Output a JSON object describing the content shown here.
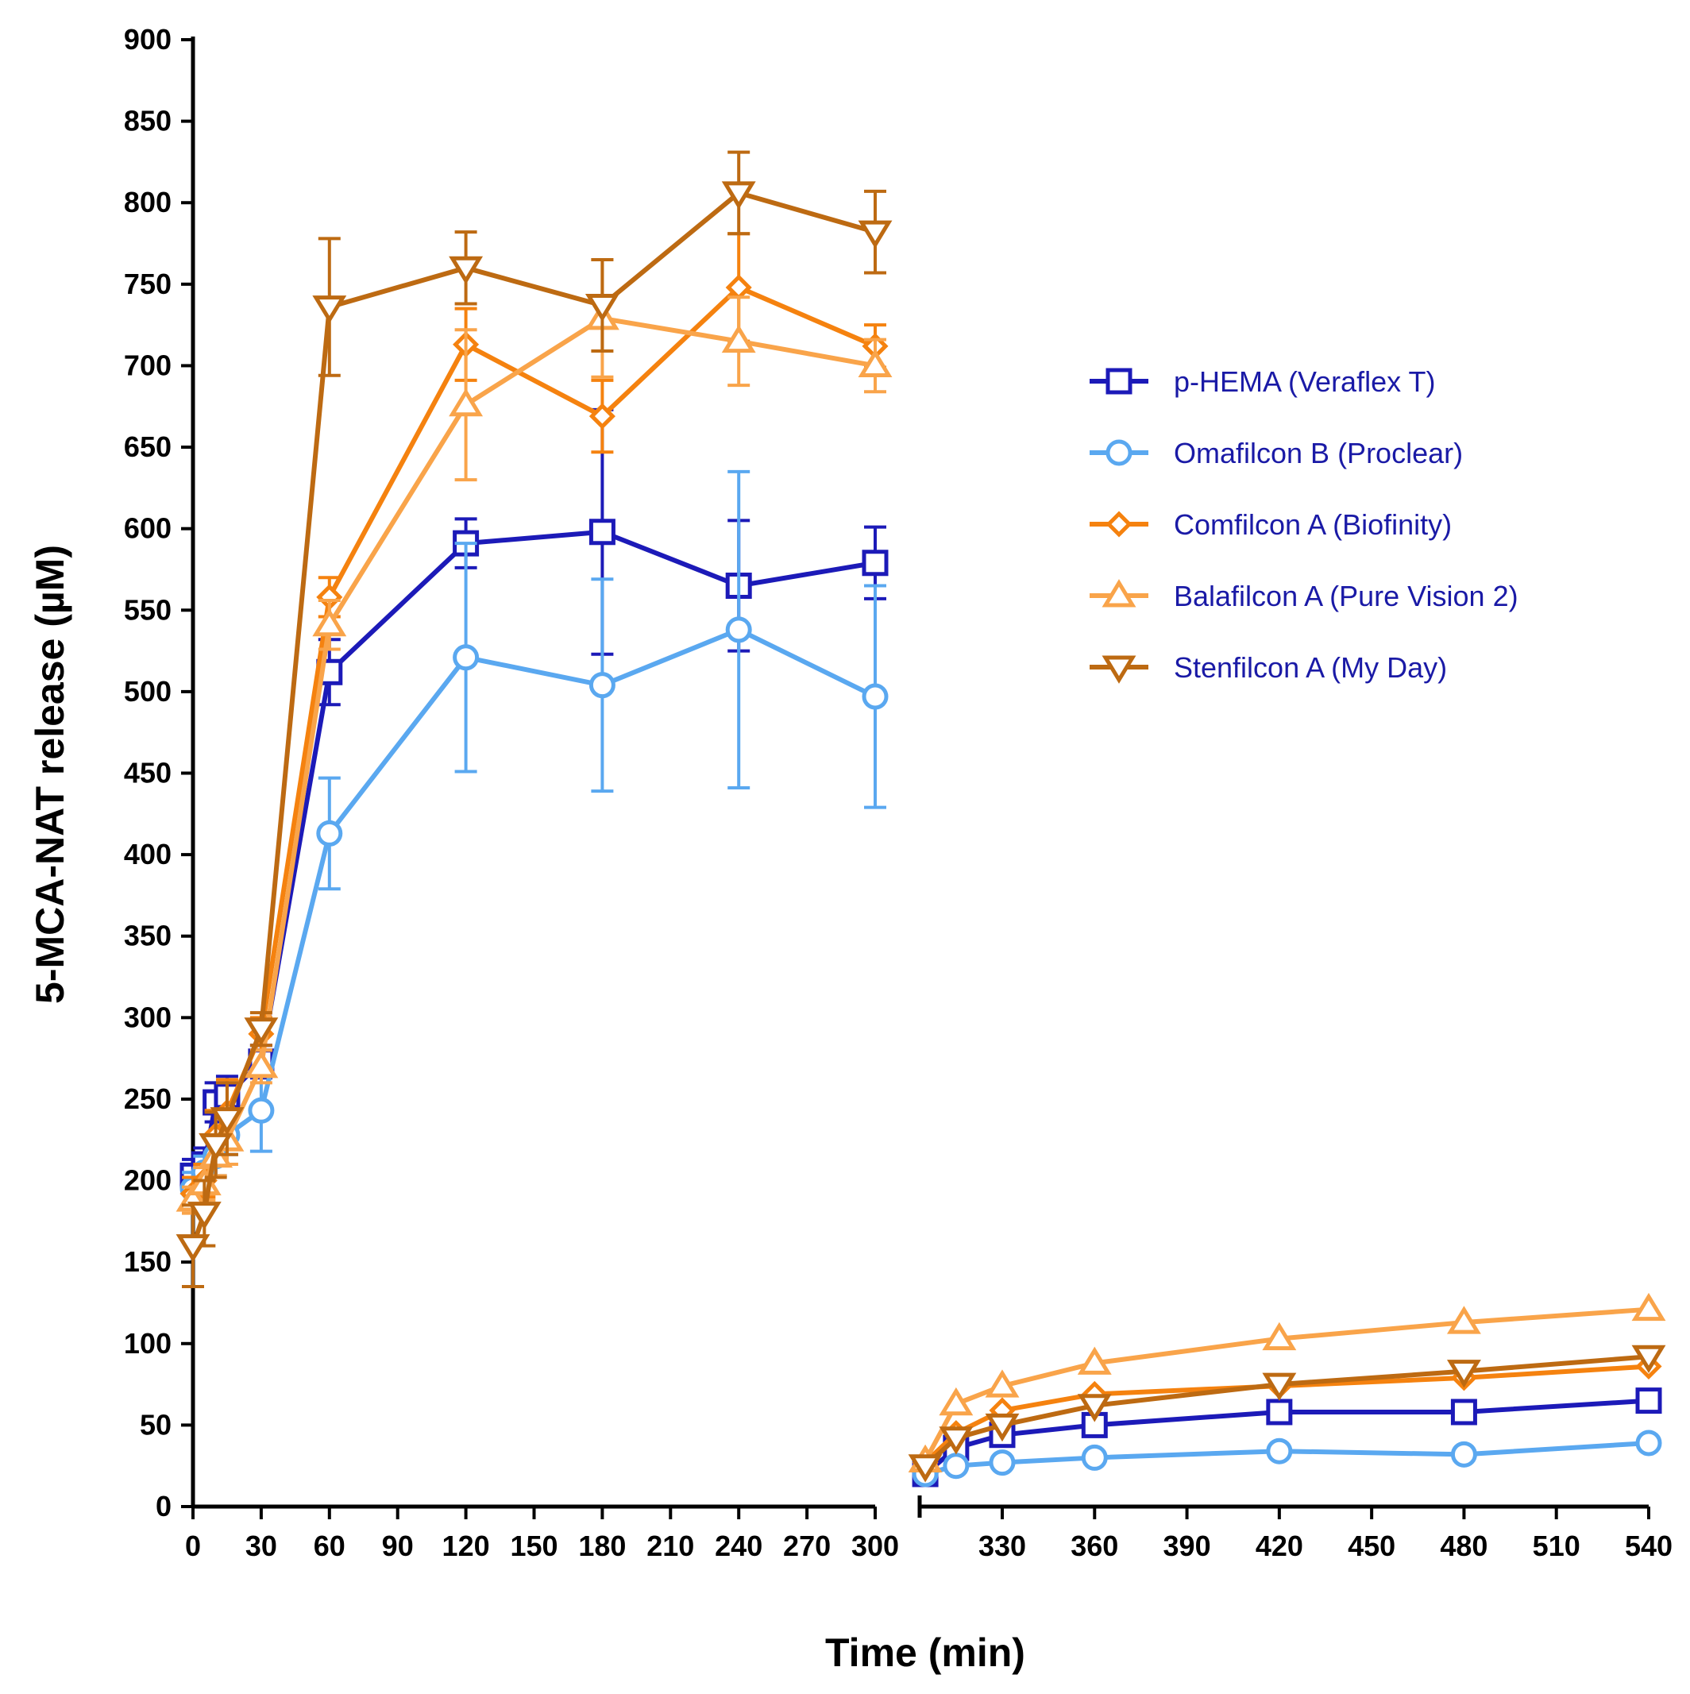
{
  "chart_data": {
    "type": "line",
    "title": "",
    "xlabel": "Time (min)",
    "ylabel": "5-MCA-NAT release (µM)",
    "ylim": [
      0,
      900
    ],
    "yticks": [
      0,
      50,
      100,
      150,
      200,
      250,
      300,
      350,
      400,
      450,
      500,
      550,
      600,
      650,
      700,
      750,
      800,
      850,
      900
    ],
    "x_segments": [
      {
        "xlim": [
          0,
          300
        ],
        "ticks": [
          0,
          30,
          60,
          90,
          120,
          150,
          180,
          210,
          240,
          270,
          300
        ],
        "tick_labels": [
          "0",
          "30",
          "60",
          "90",
          "120",
          "150",
          "180",
          "210",
          "240",
          "270",
          "300"
        ]
      },
      {
        "xlim": [
          300,
          540
        ],
        "ticks": [
          330,
          360,
          390,
          420,
          450,
          480,
          510,
          540
        ],
        "tick_labels": [
          "330",
          "360",
          "390",
          "420",
          "450",
          "480",
          "510",
          "540"
        ]
      }
    ],
    "legend_position": "right",
    "series": [
      {
        "name": "p-HEMA (Veraflex T)",
        "color": "#1c1ab8",
        "marker": "square",
        "segment1": {
          "x": [
            0,
            5,
            10,
            15,
            30,
            60,
            120,
            180,
            240,
            300
          ],
          "y": [
            203,
            210,
            248,
            252,
            273,
            512,
            591,
            598,
            565,
            579
          ],
          "err": [
            10,
            10,
            12,
            12,
            10,
            20,
            15,
            75,
            40,
            22
          ]
        },
        "segment2": {
          "x": [
            305,
            315,
            330,
            360,
            420,
            480,
            540
          ],
          "y": [
            20,
            36,
            44,
            50,
            58,
            58,
            65
          ]
        }
      },
      {
        "name": "Omafilcon B (Proclear)",
        "color": "#5aa8f0",
        "marker": "circle",
        "segment1": {
          "x": [
            0,
            5,
            10,
            15,
            30,
            60,
            120,
            180,
            240,
            300
          ],
          "y": [
            195,
            205,
            215,
            228,
            243,
            413,
            521,
            504,
            538,
            497
          ],
          "err": [
            10,
            10,
            12,
            12,
            25,
            34,
            70,
            65,
            97,
            68
          ]
        },
        "segment2": {
          "x": [
            305,
            315,
            330,
            360,
            420,
            480,
            540
          ],
          "y": [
            20,
            25,
            27,
            30,
            34,
            32,
            39
          ]
        }
      },
      {
        "name": "Comfilcon A (Biofinity)",
        "color": "#f5820f",
        "marker": "diamond",
        "segment1": {
          "x": [
            0,
            5,
            10,
            15,
            30,
            60,
            120,
            180,
            240,
            300
          ],
          "y": [
            192,
            200,
            228,
            242,
            290,
            558,
            713,
            669,
            748,
            712
          ],
          "err": [
            10,
            10,
            15,
            20,
            10,
            12,
            22,
            22,
            33,
            13
          ]
        },
        "segment2": {
          "x": [
            305,
            315,
            330,
            360,
            420,
            480,
            540
          ],
          "y": [
            27,
            45,
            59,
            69,
            74,
            79,
            86
          ]
        }
      },
      {
        "name": "Balafilcon A (Pure Vision 2)",
        "color": "#f9a44a",
        "marker": "triangle-up",
        "segment1": {
          "x": [
            0,
            5,
            10,
            15,
            30,
            60,
            120,
            180,
            240,
            300
          ],
          "y": [
            188,
            198,
            215,
            225,
            270,
            541,
            676,
            729,
            715,
            700
          ],
          "err": [
            8,
            10,
            12,
            15,
            10,
            15,
            46,
            36,
            27,
            16
          ]
        },
        "segment2": {
          "x": [
            305,
            315,
            330,
            360,
            420,
            480,
            540
          ],
          "y": [
            28,
            63,
            74,
            88,
            103,
            113,
            121
          ]
        }
      },
      {
        "name": "Stenfilcon A (My Day)",
        "color": "#bd6a12",
        "marker": "triangle-down",
        "segment1": {
          "x": [
            0,
            5,
            10,
            15,
            30,
            60,
            120,
            180,
            240,
            300
          ],
          "y": [
            160,
            180,
            222,
            238,
            293,
            736,
            760,
            737,
            806,
            782
          ],
          "err": [
            25,
            20,
            20,
            22,
            10,
            42,
            22,
            28,
            25,
            25
          ]
        },
        "segment2": {
          "x": [
            305,
            315,
            330,
            360,
            420,
            480,
            540
          ],
          "y": [
            25,
            42,
            50,
            62,
            75,
            83,
            92
          ]
        }
      }
    ]
  }
}
